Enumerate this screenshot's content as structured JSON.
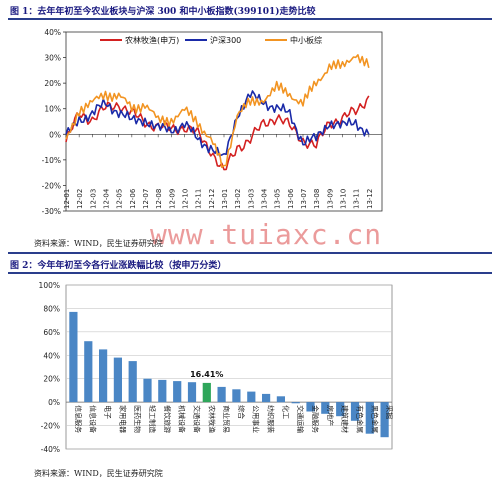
{
  "figure1": {
    "title": "图 1：去年年初至今农业板块与沪深 300 和中小板指数(399101)走势比较",
    "source": "资料来源：WIND，民生证券研究院"
  },
  "figure2": {
    "title": "图 2：今年年初至今各行业涨跌幅比较（按申万分类）",
    "source": "资料来源：WIND，民生证券研究院"
  },
  "watermark": "www.tuiaxc.cn",
  "chart_data": [
    {
      "type": "line",
      "ylim": [
        -30,
        40
      ],
      "y_ticks": [
        "40%",
        "30%",
        "20%",
        "10%",
        "0%",
        "-10%",
        "-20%",
        "-30%"
      ],
      "x_ticks": [
        "12-01",
        "12-02",
        "12-03",
        "12-04",
        "12-05",
        "12-06",
        "12-07",
        "12-08",
        "12-09",
        "12-10",
        "12-11",
        "12-12",
        "13-01",
        "13-02",
        "13-03",
        "13-04",
        "13-05",
        "13-06",
        "13-07",
        "13-08",
        "13-09",
        "13-10",
        "13-11",
        "13-12"
      ],
      "grid": false,
      "legend": "top",
      "series": [
        {
          "name": "农林牧渔(申万)",
          "color": "#d32020",
          "values": [
            -3,
            8,
            6,
            10,
            12,
            8,
            5,
            3,
            2,
            3,
            0,
            -6,
            -15,
            -5,
            -2,
            4,
            7,
            3,
            -2,
            -5,
            5,
            6,
            9,
            15
          ]
        },
        {
          "name": "沪深300",
          "color": "#1a2aa8",
          "values": [
            -1,
            6,
            8,
            12,
            9,
            5,
            6,
            2,
            2,
            4,
            -2,
            -5,
            -10,
            8,
            15,
            13,
            10,
            8,
            -3,
            -2,
            5,
            3,
            5,
            0
          ]
        },
        {
          "name": "中小板综",
          "color": "#f29422",
          "values": [
            -3,
            10,
            12,
            16,
            15,
            10,
            12,
            5,
            6,
            9,
            5,
            -2,
            -14,
            8,
            12,
            14,
            18,
            16,
            12,
            20,
            27,
            26,
            32,
            26
          ]
        }
      ]
    },
    {
      "type": "bar",
      "ylim": [
        -40,
        100
      ],
      "y_ticks": [
        "100%",
        "80%",
        "60%",
        "40%",
        "20%",
        "0%",
        "-20%",
        "-40%"
      ],
      "categories": [
        "信息服务",
        "信息设备",
        "电子",
        "家用电器",
        "医药生物",
        "轻工制造",
        "餐饮旅游",
        "机械设备",
        "交通设备",
        "农林牧渔",
        "商业贸易",
        "综合",
        "公用事业",
        "纺织服装",
        "化工",
        "交通运输",
        "金融服务",
        "房地产",
        "建筑建材",
        "有色金属",
        "黑色金属",
        "采掘"
      ],
      "values": [
        77,
        52,
        45,
        38,
        35,
        20,
        19,
        18,
        17,
        16.41,
        13,
        11,
        9,
        7,
        5,
        -1,
        -8,
        -10,
        -12,
        -16,
        -27,
        -30
      ],
      "bar_color": "#4a86c5",
      "highlight": {
        "category": "农林牧渔",
        "color": "#2ea65a",
        "label": "16.41%"
      },
      "grid": true
    }
  ]
}
